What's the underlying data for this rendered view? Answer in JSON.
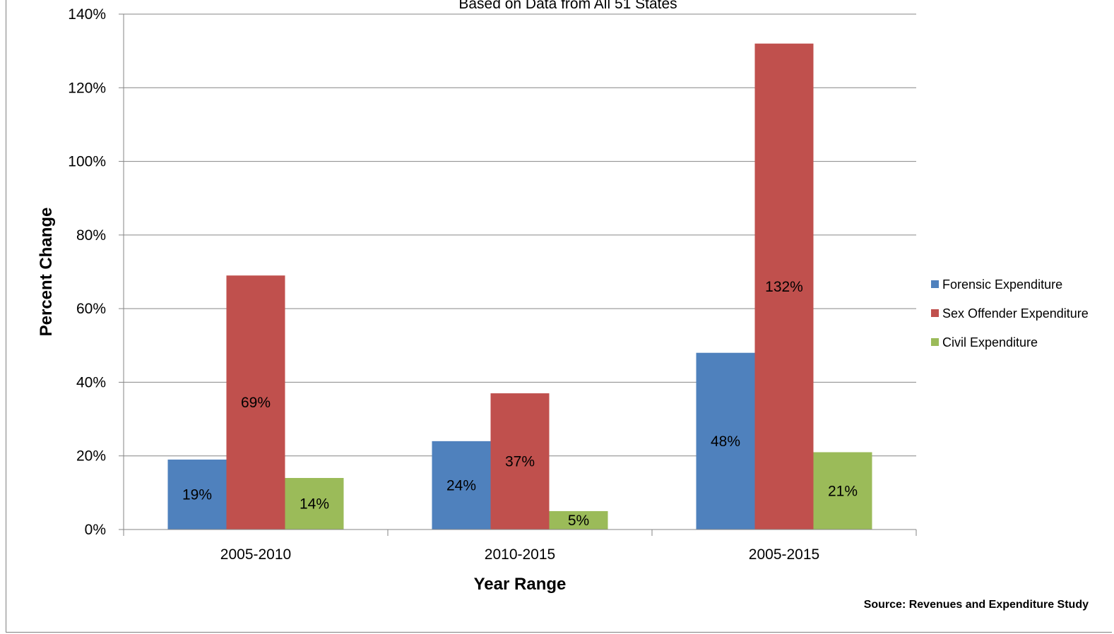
{
  "chart_data": {
    "type": "bar",
    "subtitle": "Based on Data from All 51 States",
    "xlabel": "Year Range",
    "ylabel": "Percent Change",
    "categories": [
      "2005-2010",
      "2010-2015",
      "2005-2015"
    ],
    "series": [
      {
        "name": "Forensic Expenditure",
        "color": "#4f81bd",
        "values": [
          19,
          24,
          48
        ],
        "labels": [
          "19%",
          "24%",
          "48%"
        ]
      },
      {
        "name": "Sex Offender Expenditure",
        "color": "#c0504d",
        "values": [
          69,
          37,
          132
        ],
        "labels": [
          "69%",
          "37%",
          "132%"
        ]
      },
      {
        "name": "Civil Expenditure",
        "color": "#9bbb59",
        "values": [
          14,
          5,
          21
        ],
        "labels": [
          "14%",
          "5%",
          "21%"
        ]
      }
    ],
    "ylim": [
      0,
      140
    ],
    "yticks": [
      "0%",
      "20%",
      "40%",
      "60%",
      "80%",
      "100%",
      "120%",
      "140%"
    ],
    "grid": true,
    "legend_position": "right",
    "source": "Source: Revenues and Expenditure Study"
  }
}
